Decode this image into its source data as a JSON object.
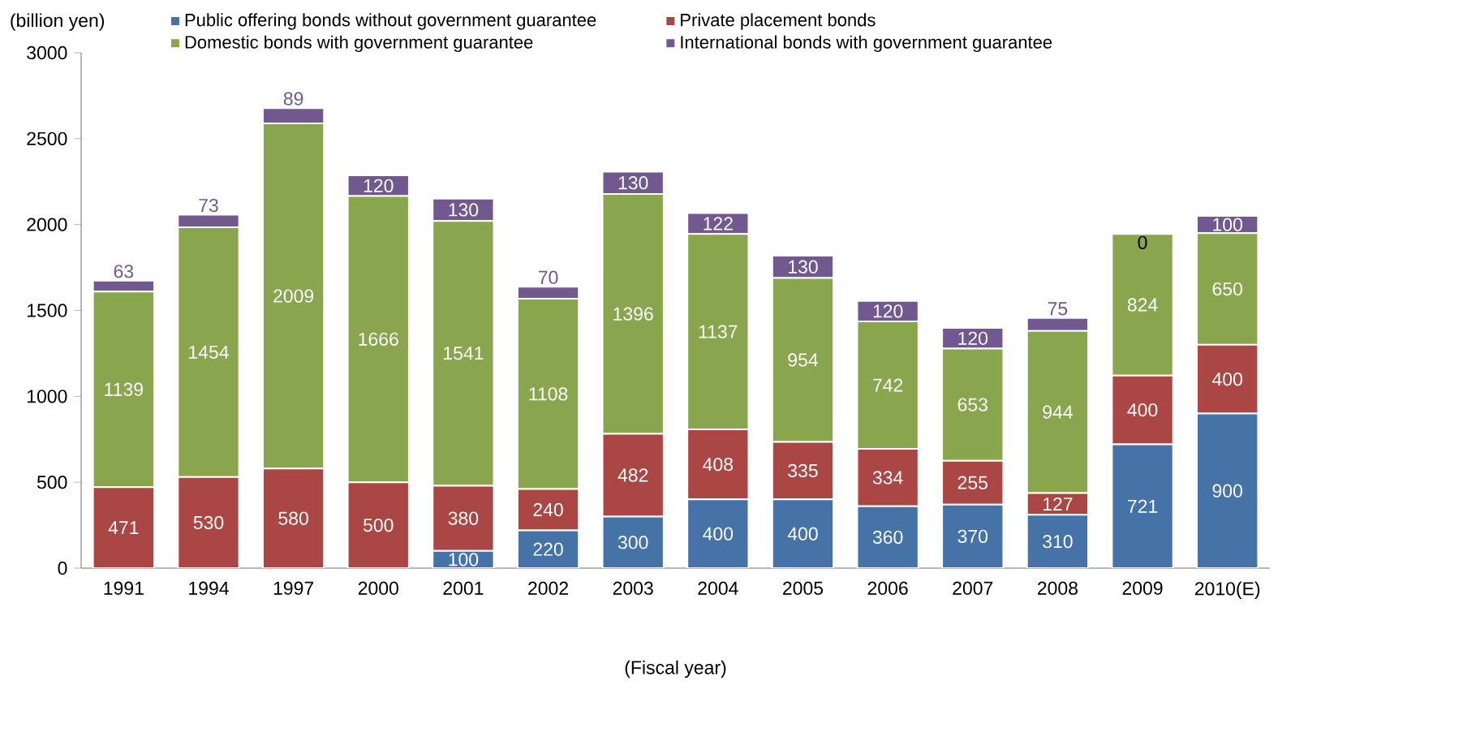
{
  "chart_data": {
    "type": "bar",
    "stacked": true,
    "data_labels": true,
    "legend": "top",
    "ylabel": "(billion yen)",
    "xlabel": "(Fiscal year)",
    "categories": [
      "1991",
      "1994",
      "1997",
      "2000",
      "2001",
      "2002",
      "2003",
      "2004",
      "2005",
      "2006",
      "2007",
      "2008",
      "2009",
      "2010(E)"
    ],
    "ylim": [
      0,
      3000
    ],
    "yticks": [
      0,
      500,
      1000,
      1500,
      2000,
      2500,
      3000
    ],
    "series": [
      {
        "name": "Public offering bonds without government guarantee",
        "color": "#4572a7",
        "values": [
          null,
          null,
          null,
          null,
          100,
          220,
          300,
          400,
          400,
          360,
          370,
          310,
          721,
          900
        ]
      },
      {
        "name": "Private placement bonds",
        "color": "#aa4643",
        "values": [
          471,
          530,
          580,
          500,
          380,
          240,
          482,
          408,
          335,
          334,
          255,
          127,
          400,
          400
        ]
      },
      {
        "name": "Domestic bonds with government guarantee",
        "color": "#89a54e",
        "values": [
          1139,
          1454,
          2009,
          1666,
          1541,
          1108,
          1396,
          1137,
          954,
          742,
          653,
          944,
          824,
          650
        ]
      },
      {
        "name": "International bonds with government guarantee",
        "color": "#71588f",
        "values": [
          63,
          73,
          89,
          120,
          130,
          70,
          130,
          122,
          130,
          120,
          120,
          75,
          0,
          100
        ]
      }
    ]
  }
}
